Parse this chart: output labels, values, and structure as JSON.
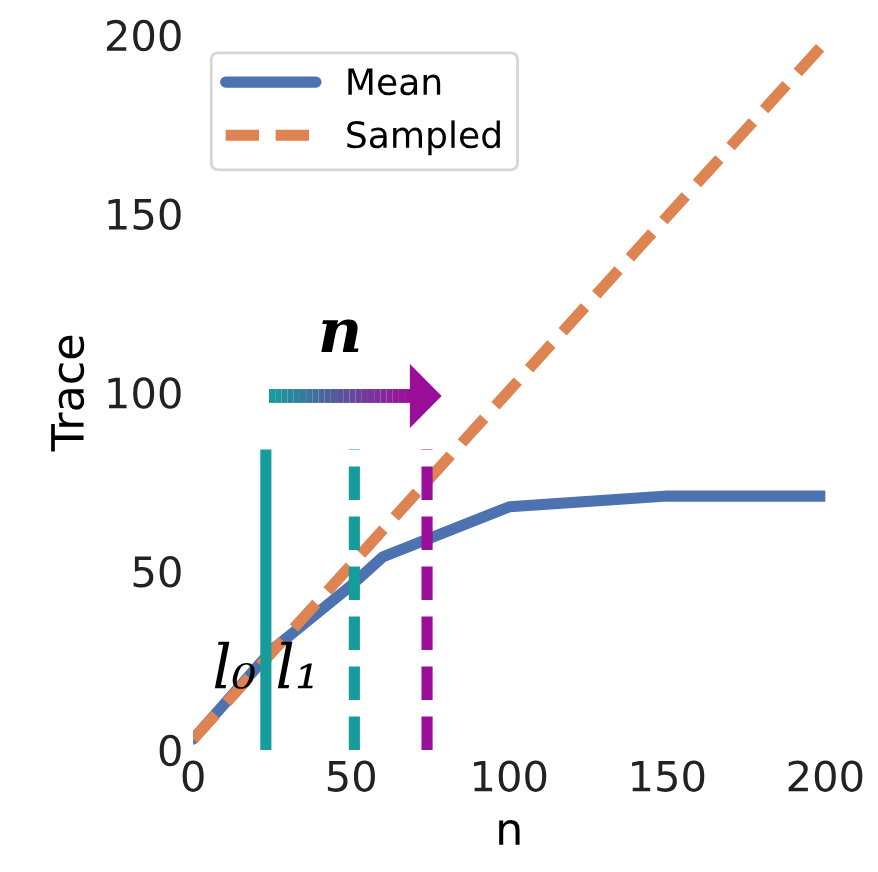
{
  "chart_data": {
    "type": "line",
    "xlabel": "n",
    "ylabel": "Trace",
    "xlim": [
      0,
      200
    ],
    "ylim": [
      0,
      200
    ],
    "xticks": [
      0,
      50,
      100,
      150,
      200
    ],
    "yticks": [
      0,
      50,
      100,
      150,
      200
    ],
    "grid": false,
    "legend": "top left",
    "series": [
      {
        "name": "Mean",
        "color": "#4c72b0",
        "line_style": "solid",
        "x": [
          0,
          25,
          50,
          60,
          100,
          150,
          200
        ],
        "values": [
          3,
          28,
          46,
          54,
          68,
          71,
          71
        ]
      },
      {
        "name": "Sampled",
        "color": "#dd8452",
        "line_style": "dashed",
        "x": [
          0,
          200
        ],
        "values": [
          3,
          198
        ]
      },
      {
        "color": "#179c9c",
        "line_style": "solid",
        "x": [
          23,
          23
        ],
        "values": [
          0,
          84
        ]
      },
      {
        "color": "#179c9c",
        "line_style": "dashed",
        "x": [
          51,
          51
        ],
        "values": [
          0,
          84
        ]
      },
      {
        "color": "#9a0e9a",
        "line_style": "dashed",
        "x": [
          74,
          74
        ],
        "values": [
          0,
          84
        ]
      }
    ],
    "annotations": [
      "n",
      "l₀",
      "l₁"
    ]
  }
}
